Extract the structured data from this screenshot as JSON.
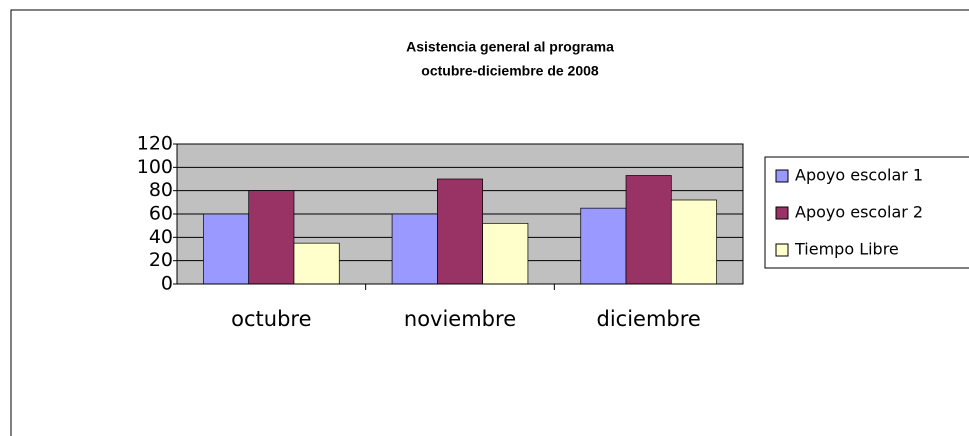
{
  "chart_data": {
    "type": "bar",
    "title": [
      "Asistencia general al programa",
      "octubre-diciembre de  2008"
    ],
    "categories": [
      "octubre",
      "noviembre",
      "diciembre"
    ],
    "series": [
      {
        "name": "Apoyo escolar 1",
        "color": "#9999ff",
        "values": [
          60,
          60,
          65
        ]
      },
      {
        "name": "Apoyo escolar 2",
        "color": "#993366",
        "values": [
          80,
          90,
          93
        ]
      },
      {
        "name": "Tiempo Libre",
        "color": "#ffffcc",
        "values": [
          35,
          52,
          72
        ]
      }
    ],
    "ylim": [
      0,
      120
    ],
    "yticks": [
      0,
      20,
      40,
      60,
      80,
      100,
      120
    ],
    "grid": true,
    "legend": "right"
  }
}
